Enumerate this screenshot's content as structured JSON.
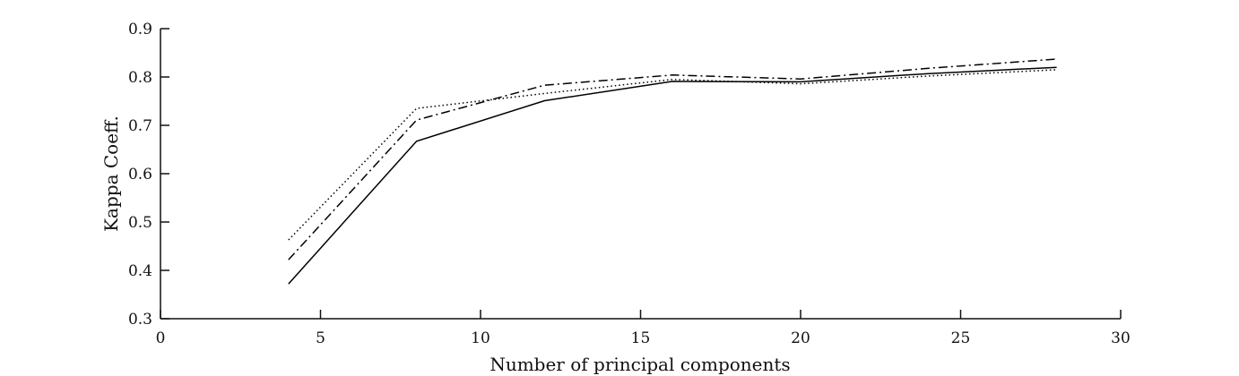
{
  "chart_data": {
    "type": "line",
    "title": "",
    "xlabel": "Number of principal components",
    "ylabel": "Kappa Coeff.",
    "xlim": [
      0,
      30
    ],
    "ylim": [
      0.3,
      0.9
    ],
    "xticks": [
      0,
      5,
      10,
      15,
      20,
      25,
      30
    ],
    "xtick_labels": [
      "0",
      "5",
      "10",
      "15",
      "20",
      "25",
      "30"
    ],
    "yticks": [
      0.3,
      0.4,
      0.5,
      0.6,
      0.7,
      0.8,
      0.9
    ],
    "ytick_labels": [
      "0.3",
      "0.4",
      "0.5",
      "0.6",
      "0.7",
      "0.8",
      "0.9"
    ],
    "grid": false,
    "x": [
      4,
      8,
      12,
      16,
      20,
      24,
      28
    ],
    "series": [
      {
        "name": "solid",
        "style": "solid",
        "values": [
          0.372,
          0.667,
          0.751,
          0.791,
          0.79,
          0.807,
          0.82
        ]
      },
      {
        "name": "dash-dot",
        "style": "dashdot",
        "values": [
          0.422,
          0.711,
          0.783,
          0.804,
          0.796,
          0.818,
          0.837
        ]
      },
      {
        "name": "dotted",
        "style": "dotted",
        "values": [
          0.463,
          0.735,
          0.766,
          0.795,
          0.786,
          0.802,
          0.815
        ]
      }
    ]
  }
}
